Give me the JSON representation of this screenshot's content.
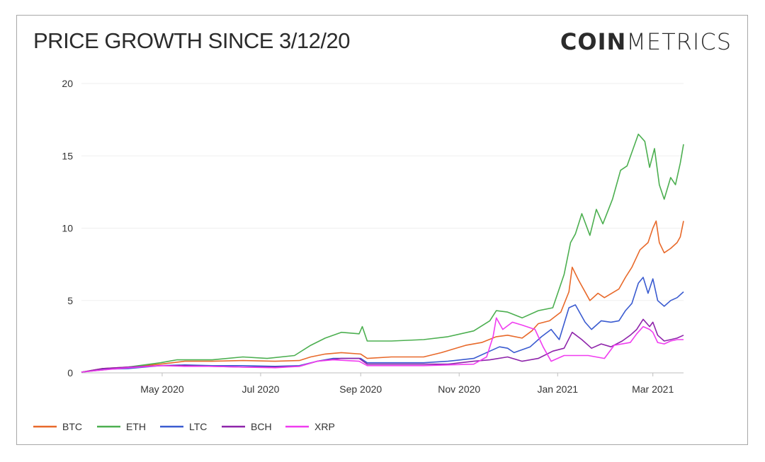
{
  "title": "PRICE GROWTH SINCE 3/12/20",
  "logo": {
    "bold": "COIN",
    "light": "METRICS"
  },
  "colors": {
    "BTC": "#e8692a",
    "ETH": "#4caf50",
    "LTC": "#3a5bd0",
    "BCH": "#8e24aa",
    "XRP": "#f03cf0"
  },
  "chart_data": {
    "type": "line",
    "title": "PRICE GROWTH SINCE 3/12/20",
    "xlabel": "",
    "ylabel": "",
    "ylim": [
      0,
      20
    ],
    "yticks": [
      0,
      5,
      10,
      15,
      20
    ],
    "xlim": [
      "2020-03-12",
      "2021-03-10"
    ],
    "xticks": [
      {
        "date": "2020-05-01",
        "label": "May 2020"
      },
      {
        "date": "2020-07-01",
        "label": "Jul 2020"
      },
      {
        "date": "2020-09-01",
        "label": "Sep 2020"
      },
      {
        "date": "2020-11-01",
        "label": "Nov 2020"
      },
      {
        "date": "2021-01-01",
        "label": "Jan 2021"
      },
      {
        "date": "2021-03-01",
        "label": "Mar 2021"
      }
    ],
    "grid": true,
    "legend": "bottom-left",
    "series": [
      {
        "name": "BTC",
        "color": "#e8692a",
        "points": [
          [
            "2020-03-12",
            0.05
          ],
          [
            "2020-03-25",
            0.3
          ],
          [
            "2020-04-10",
            0.4
          ],
          [
            "2020-04-30",
            0.6
          ],
          [
            "2020-05-15",
            0.8
          ],
          [
            "2020-06-01",
            0.8
          ],
          [
            "2020-06-20",
            0.85
          ],
          [
            "2020-07-10",
            0.8
          ],
          [
            "2020-07-25",
            0.85
          ],
          [
            "2020-08-01",
            1.1
          ],
          [
            "2020-08-10",
            1.3
          ],
          [
            "2020-08-20",
            1.4
          ],
          [
            "2020-09-01",
            1.3
          ],
          [
            "2020-09-05",
            1.0
          ],
          [
            "2020-09-20",
            1.1
          ],
          [
            "2020-10-10",
            1.1
          ],
          [
            "2020-10-21",
            1.4
          ],
          [
            "2020-11-05",
            1.9
          ],
          [
            "2020-11-15",
            2.1
          ],
          [
            "2020-11-24",
            2.5
          ],
          [
            "2020-12-01",
            2.6
          ],
          [
            "2020-12-10",
            2.4
          ],
          [
            "2020-12-16",
            2.9
          ],
          [
            "2020-12-20",
            3.4
          ],
          [
            "2020-12-27",
            3.6
          ],
          [
            "2021-01-03",
            4.2
          ],
          [
            "2021-01-08",
            5.6
          ],
          [
            "2021-01-10",
            7.3
          ],
          [
            "2021-01-14",
            6.4
          ],
          [
            "2021-01-21",
            5.0
          ],
          [
            "2021-01-26",
            5.5
          ],
          [
            "2021-01-30",
            5.2
          ],
          [
            "2021-02-08",
            5.8
          ],
          [
            "2021-02-12",
            6.6
          ],
          [
            "2021-02-16",
            7.3
          ],
          [
            "2021-02-21",
            8.5
          ],
          [
            "2021-02-26",
            9.0
          ],
          [
            "2021-03-01",
            10.0
          ],
          [
            "2021-03-03",
            10.5
          ],
          [
            "2021-03-05",
            9.0
          ],
          [
            "2021-03-08",
            8.3
          ],
          [
            "2021-03-12",
            8.6
          ],
          [
            "2021-03-16",
            9.0
          ],
          [
            "2021-03-18",
            9.4
          ],
          [
            "2021-03-20",
            10.5
          ]
        ]
      },
      {
        "name": "ETH",
        "color": "#4caf50",
        "points": [
          [
            "2020-03-12",
            0.05
          ],
          [
            "2020-03-25",
            0.2
          ],
          [
            "2020-04-10",
            0.4
          ],
          [
            "2020-04-30",
            0.7
          ],
          [
            "2020-05-10",
            0.9
          ],
          [
            "2020-06-01",
            0.9
          ],
          [
            "2020-06-20",
            1.1
          ],
          [
            "2020-07-05",
            1.0
          ],
          [
            "2020-07-22",
            1.2
          ],
          [
            "2020-08-01",
            1.9
          ],
          [
            "2020-08-10",
            2.4
          ],
          [
            "2020-08-20",
            2.8
          ],
          [
            "2020-08-31",
            2.7
          ],
          [
            "2020-09-02",
            3.2
          ],
          [
            "2020-09-05",
            2.2
          ],
          [
            "2020-09-20",
            2.2
          ],
          [
            "2020-10-10",
            2.3
          ],
          [
            "2020-10-25",
            2.5
          ],
          [
            "2020-11-10",
            2.9
          ],
          [
            "2020-11-20",
            3.6
          ],
          [
            "2020-11-24",
            4.3
          ],
          [
            "2020-12-01",
            4.2
          ],
          [
            "2020-12-10",
            3.8
          ],
          [
            "2020-12-20",
            4.3
          ],
          [
            "2020-12-29",
            4.5
          ],
          [
            "2021-01-05",
            6.8
          ],
          [
            "2021-01-09",
            9.0
          ],
          [
            "2021-01-12",
            9.6
          ],
          [
            "2021-01-16",
            11.0
          ],
          [
            "2021-01-21",
            9.5
          ],
          [
            "2021-01-25",
            11.3
          ],
          [
            "2021-01-29",
            10.3
          ],
          [
            "2021-02-04",
            12.0
          ],
          [
            "2021-02-09",
            14.0
          ],
          [
            "2021-02-13",
            14.3
          ],
          [
            "2021-02-20",
            16.5
          ],
          [
            "2021-02-24",
            16.0
          ],
          [
            "2021-02-27",
            14.2
          ],
          [
            "2021-03-02",
            15.5
          ],
          [
            "2021-03-05",
            13.0
          ],
          [
            "2021-03-08",
            12.0
          ],
          [
            "2021-03-12",
            13.5
          ],
          [
            "2021-03-15",
            13.0
          ],
          [
            "2021-03-18",
            14.5
          ],
          [
            "2021-03-20",
            15.8
          ]
        ]
      },
      {
        "name": "LTC",
        "color": "#3a5bd0",
        "points": [
          [
            "2020-03-12",
            0.05
          ],
          [
            "2020-03-25",
            0.25
          ],
          [
            "2020-04-10",
            0.3
          ],
          [
            "2020-04-30",
            0.5
          ],
          [
            "2020-05-15",
            0.55
          ],
          [
            "2020-06-01",
            0.5
          ],
          [
            "2020-06-20",
            0.5
          ],
          [
            "2020-07-10",
            0.45
          ],
          [
            "2020-07-25",
            0.5
          ],
          [
            "2020-08-05",
            0.8
          ],
          [
            "2020-08-15",
            1.0
          ],
          [
            "2020-08-25",
            1.0
          ],
          [
            "2020-09-01",
            1.0
          ],
          [
            "2020-09-05",
            0.7
          ],
          [
            "2020-09-20",
            0.7
          ],
          [
            "2020-10-10",
            0.7
          ],
          [
            "2020-10-25",
            0.8
          ],
          [
            "2020-11-10",
            1.0
          ],
          [
            "2020-11-20",
            1.5
          ],
          [
            "2020-11-26",
            1.8
          ],
          [
            "2020-12-01",
            1.7
          ],
          [
            "2020-12-05",
            1.4
          ],
          [
            "2020-12-15",
            1.8
          ],
          [
            "2020-12-22",
            2.5
          ],
          [
            "2020-12-28",
            3.0
          ],
          [
            "2021-01-02",
            2.3
          ],
          [
            "2021-01-08",
            4.5
          ],
          [
            "2021-01-12",
            4.7
          ],
          [
            "2021-01-18",
            3.5
          ],
          [
            "2021-01-22",
            3.0
          ],
          [
            "2021-01-28",
            3.6
          ],
          [
            "2021-02-03",
            3.5
          ],
          [
            "2021-02-08",
            3.6
          ],
          [
            "2021-02-12",
            4.3
          ],
          [
            "2021-02-16",
            4.8
          ],
          [
            "2021-02-20",
            6.2
          ],
          [
            "2021-02-23",
            6.6
          ],
          [
            "2021-02-26",
            5.5
          ],
          [
            "2021-03-01",
            6.5
          ],
          [
            "2021-03-04",
            5.0
          ],
          [
            "2021-03-08",
            4.6
          ],
          [
            "2021-03-12",
            5.0
          ],
          [
            "2021-03-16",
            5.2
          ],
          [
            "2021-03-20",
            5.6
          ]
        ]
      },
      {
        "name": "BCH",
        "color": "#8e24aa",
        "points": [
          [
            "2020-03-12",
            0.05
          ],
          [
            "2020-03-25",
            0.3
          ],
          [
            "2020-04-10",
            0.4
          ],
          [
            "2020-04-30",
            0.5
          ],
          [
            "2020-05-15",
            0.5
          ],
          [
            "2020-06-01",
            0.45
          ],
          [
            "2020-06-20",
            0.4
          ],
          [
            "2020-07-10",
            0.4
          ],
          [
            "2020-07-25",
            0.45
          ],
          [
            "2020-08-05",
            0.8
          ],
          [
            "2020-08-20",
            1.0
          ],
          [
            "2020-08-31",
            1.0
          ],
          [
            "2020-09-05",
            0.6
          ],
          [
            "2020-09-20",
            0.6
          ],
          [
            "2020-10-10",
            0.6
          ],
          [
            "2020-10-25",
            0.6
          ],
          [
            "2020-11-10",
            0.8
          ],
          [
            "2020-11-20",
            0.9
          ],
          [
            "2020-12-01",
            1.1
          ],
          [
            "2020-12-10",
            0.8
          ],
          [
            "2020-12-20",
            1.0
          ],
          [
            "2020-12-29",
            1.5
          ],
          [
            "2021-01-05",
            1.7
          ],
          [
            "2021-01-10",
            2.8
          ],
          [
            "2021-01-16",
            2.3
          ],
          [
            "2021-01-22",
            1.7
          ],
          [
            "2021-01-28",
            2.0
          ],
          [
            "2021-02-03",
            1.8
          ],
          [
            "2021-02-10",
            2.2
          ],
          [
            "2021-02-15",
            2.6
          ],
          [
            "2021-02-19",
            3.0
          ],
          [
            "2021-02-23",
            3.7
          ],
          [
            "2021-02-27",
            3.2
          ],
          [
            "2021-03-01",
            3.5
          ],
          [
            "2021-03-04",
            2.6
          ],
          [
            "2021-03-08",
            2.2
          ],
          [
            "2021-03-12",
            2.3
          ],
          [
            "2021-03-16",
            2.4
          ],
          [
            "2021-03-20",
            2.6
          ]
        ]
      },
      {
        "name": "XRP",
        "color": "#f03cf0",
        "points": [
          [
            "2020-03-12",
            0.05
          ],
          [
            "2020-03-25",
            0.2
          ],
          [
            "2020-04-10",
            0.35
          ],
          [
            "2020-04-30",
            0.5
          ],
          [
            "2020-05-15",
            0.45
          ],
          [
            "2020-06-01",
            0.45
          ],
          [
            "2020-06-20",
            0.4
          ],
          [
            "2020-07-10",
            0.35
          ],
          [
            "2020-07-25",
            0.45
          ],
          [
            "2020-08-05",
            0.8
          ],
          [
            "2020-08-15",
            0.9
          ],
          [
            "2020-08-31",
            0.8
          ],
          [
            "2020-09-05",
            0.5
          ],
          [
            "2020-09-20",
            0.5
          ],
          [
            "2020-10-10",
            0.5
          ],
          [
            "2020-10-25",
            0.55
          ],
          [
            "2020-11-10",
            0.6
          ],
          [
            "2020-11-18",
            1.1
          ],
          [
            "2020-11-22",
            2.5
          ],
          [
            "2020-11-24",
            3.8
          ],
          [
            "2020-11-28",
            3.0
          ],
          [
            "2020-12-04",
            3.5
          ],
          [
            "2020-12-10",
            3.3
          ],
          [
            "2020-12-18",
            3.0
          ],
          [
            "2020-12-23",
            1.8
          ],
          [
            "2020-12-28",
            0.8
          ],
          [
            "2021-01-05",
            1.2
          ],
          [
            "2021-01-10",
            1.2
          ],
          [
            "2021-01-20",
            1.2
          ],
          [
            "2021-01-30",
            1.0
          ],
          [
            "2021-02-05",
            1.9
          ],
          [
            "2021-02-10",
            2.0
          ],
          [
            "2021-02-15",
            2.1
          ],
          [
            "2021-02-19",
            2.7
          ],
          [
            "2021-02-23",
            3.2
          ],
          [
            "2021-02-27",
            3.0
          ],
          [
            "2021-03-01",
            2.8
          ],
          [
            "2021-03-04",
            2.1
          ],
          [
            "2021-03-08",
            2.0
          ],
          [
            "2021-03-12",
            2.2
          ],
          [
            "2021-03-16",
            2.3
          ],
          [
            "2021-03-20",
            2.3
          ]
        ]
      }
    ]
  }
}
